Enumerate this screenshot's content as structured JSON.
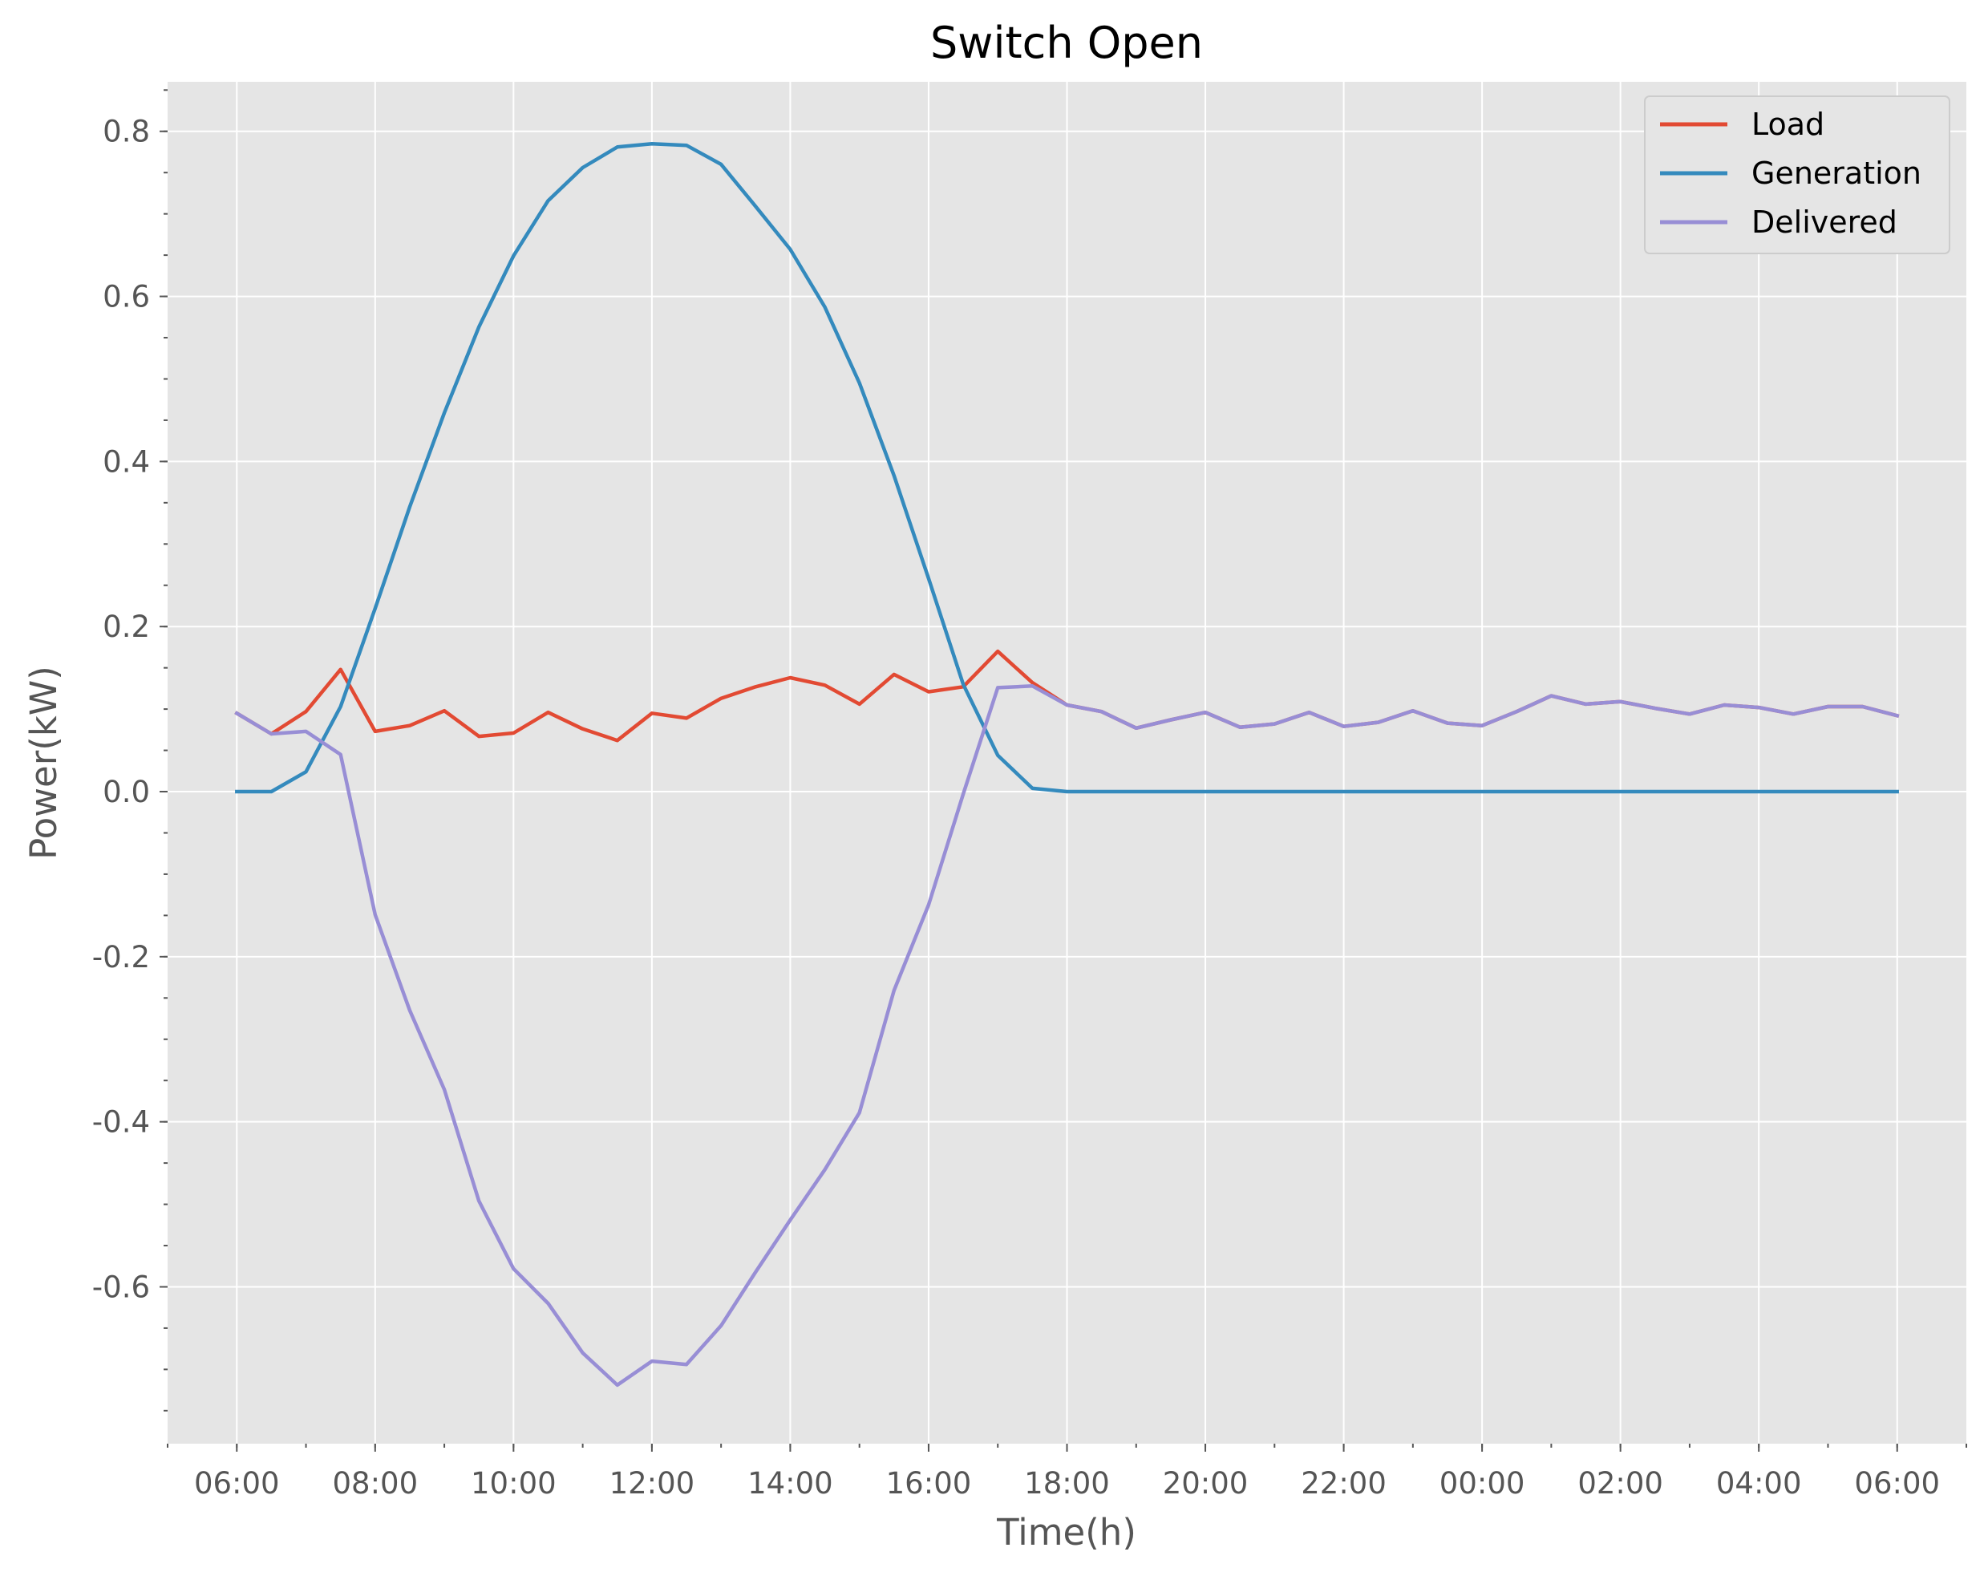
{
  "chart_data": {
    "type": "line",
    "title": "Switch Open",
    "xlabel": "Time(h)",
    "ylabel": "Power(kW)",
    "x_ticks": [
      "06:00",
      "08:00",
      "10:00",
      "12:00",
      "14:00",
      "16:00",
      "18:00",
      "20:00",
      "22:00",
      "00:00",
      "02:00",
      "04:00",
      "06:00"
    ],
    "y_ticks": [
      "0.8",
      "0.6",
      "0.4",
      "0.2",
      "0.0",
      "-0.2",
      "-0.4",
      "-0.6"
    ],
    "xlim": [
      "05:00",
      "07:00 (+1 day)"
    ],
    "ylim": [
      -0.79,
      0.86
    ],
    "grid": true,
    "legend_position": "top-right",
    "x": [
      "06:00",
      "06:30",
      "07:00",
      "07:30",
      "08:00",
      "08:30",
      "09:00",
      "09:30",
      "10:00",
      "10:30",
      "11:00",
      "11:30",
      "12:00",
      "12:30",
      "13:00",
      "13:30",
      "14:00",
      "14:30",
      "15:00",
      "15:30",
      "16:00",
      "16:30",
      "17:00",
      "17:30",
      "18:00",
      "18:30",
      "19:00",
      "19:30",
      "20:00",
      "20:30",
      "21:00",
      "21:30",
      "22:00",
      "22:30",
      "23:00",
      "23:30",
      "00:00",
      "00:30",
      "01:00",
      "01:30",
      "02:00",
      "02:30",
      "03:00",
      "03:30",
      "04:00",
      "04:30",
      "05:00",
      "05:30",
      "06:00"
    ],
    "series": [
      {
        "name": "Load",
        "color": "#E24A33",
        "values": [
          0.095,
          0.07,
          0.097,
          0.148,
          0.073,
          0.08,
          0.098,
          0.067,
          0.071,
          0.096,
          0.076,
          0.062,
          0.095,
          0.089,
          0.113,
          0.127,
          0.138,
          0.129,
          0.106,
          0.142,
          0.121,
          0.127,
          0.17,
          0.132,
          0.105,
          0.097,
          0.077,
          0.087,
          0.096,
          0.078,
          0.082,
          0.096,
          0.079,
          0.084,
          0.098,
          0.083,
          0.08,
          0.097,
          0.116,
          0.106,
          0.109,
          0.101,
          0.094,
          0.105,
          0.102,
          0.094,
          0.103,
          0.103,
          0.092
        ]
      },
      {
        "name": "Generation",
        "color": "#348ABD",
        "values": [
          0.0,
          0.0,
          0.024,
          0.103,
          0.222,
          0.345,
          0.459,
          0.563,
          0.649,
          0.716,
          0.756,
          0.781,
          0.785,
          0.783,
          0.76,
          0.709,
          0.657,
          0.587,
          0.495,
          0.383,
          0.258,
          0.13,
          0.044,
          0.004,
          0.0,
          0.0,
          0.0,
          0.0,
          0.0,
          0.0,
          0.0,
          0.0,
          0.0,
          0.0,
          0.0,
          0.0,
          0.0,
          0.0,
          0.0,
          0.0,
          0.0,
          0.0,
          0.0,
          0.0,
          0.0,
          0.0,
          0.0,
          0.0,
          0.0
        ]
      },
      {
        "name": "Delivered",
        "color": "#988ED5",
        "values": [
          0.095,
          0.07,
          0.073,
          0.045,
          -0.149,
          -0.265,
          -0.361,
          -0.496,
          -0.578,
          -0.62,
          -0.68,
          -0.719,
          -0.69,
          -0.694,
          -0.647,
          -0.582,
          -0.519,
          -0.458,
          -0.389,
          -0.241,
          -0.137,
          -0.003,
          0.126,
          0.128,
          0.105,
          0.097,
          0.077,
          0.087,
          0.096,
          0.078,
          0.082,
          0.096,
          0.079,
          0.084,
          0.098,
          0.083,
          0.08,
          0.097,
          0.116,
          0.106,
          0.109,
          0.101,
          0.094,
          0.105,
          0.102,
          0.094,
          0.103,
          0.103,
          0.092
        ]
      }
    ]
  }
}
